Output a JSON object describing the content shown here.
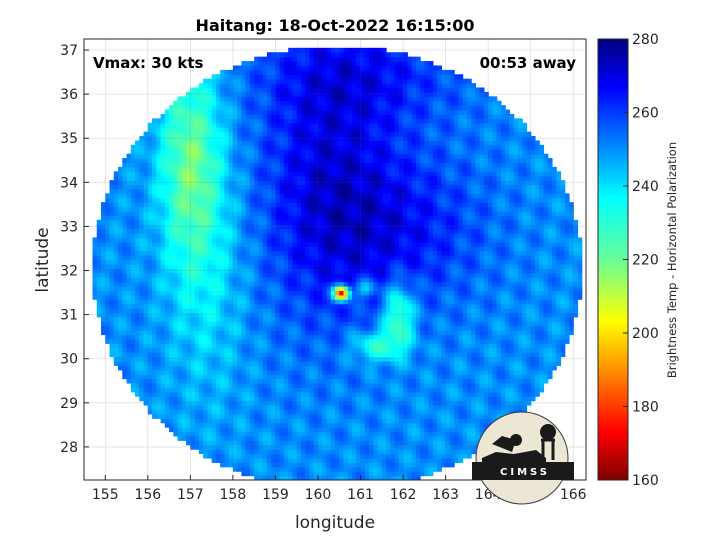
{
  "chart_data": {
    "type": "heatmap",
    "title": "Haitang: 18-Oct-2022 16:15:00",
    "xlabel": "longitude",
    "ylabel": "latitude",
    "xlim": [
      154.5,
      166.3
    ],
    "ylim": [
      27.25,
      37.25
    ],
    "xticks": [
      155,
      156,
      157,
      158,
      159,
      160,
      161,
      162,
      163,
      164,
      165,
      166
    ],
    "yticks": [
      28,
      29,
      30,
      31,
      32,
      33,
      34,
      35,
      36,
      37
    ],
    "grid": true,
    "annotations": {
      "vmax": "Vmax: 30 kts",
      "time_away": "00:53 away"
    },
    "colorbar": {
      "label": "Brightness Temp - Horizontal Polarization",
      "range": [
        160,
        280
      ],
      "ticks": [
        160,
        180,
        200,
        220,
        240,
        260,
        280
      ],
      "colormap": "jet"
    },
    "swath": {
      "center_lon": 160.45,
      "center_lat": 32.05,
      "half_width_lon": 5.75,
      "half_height_lat": 5.05
    },
    "features": [
      {
        "name": "storm center",
        "lon": 160.55,
        "lat": 31.5,
        "value": 165
      },
      {
        "name": "convective band",
        "lon": 161.9,
        "lat": 31.0,
        "value": 225
      },
      {
        "name": "warm rain band",
        "lon": 157.0,
        "lat": 34.5,
        "value": 222
      }
    ]
  },
  "logo": {
    "text": "CIMSS"
  }
}
